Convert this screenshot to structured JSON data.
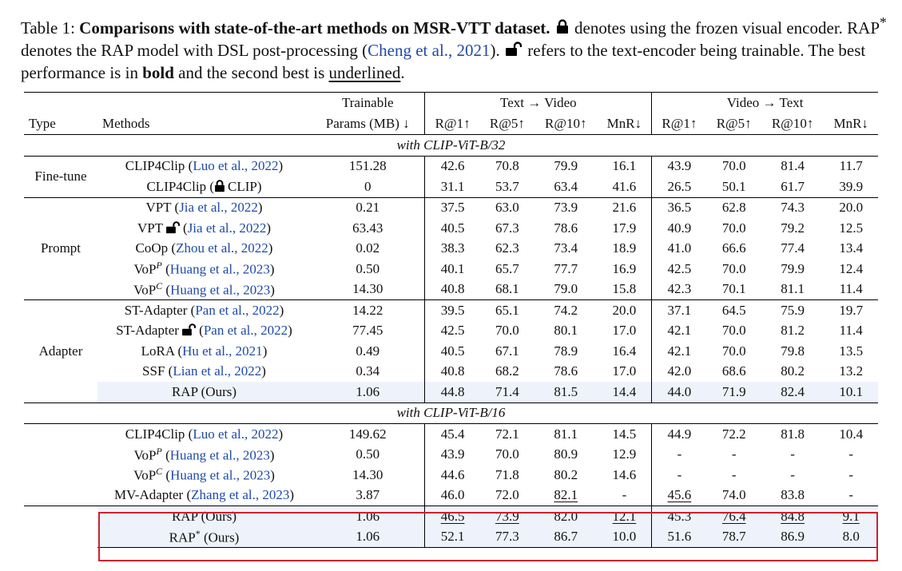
{
  "caption": {
    "label": "Table 1:",
    "title": "Comparisons with state-of-the-art methods on MSR-VTT dataset.",
    "p1": " denotes using the frozen visual encoder. RAP",
    "p1sup": "*",
    "p2": " denotes the RAP model with DSL post-processing (",
    "cite": "Cheng et al., 2021",
    "p3": ").",
    "p4": " refers to the text-encoder being trainable. The best performance is in ",
    "bold_word": "bold",
    "p5": " and the second best is ",
    "underline_word": "underlined",
    "p6": "."
  },
  "header": {
    "type": "Type",
    "methods": "Methods",
    "params_line1": "Trainable",
    "params_line2": "Params (MB) ↓",
    "t2v": "Text → Video",
    "v2t": "Video → Text",
    "metrics": [
      "R@1↑",
      "R@5↑",
      "R@10↑",
      "MnR↓",
      "R@1↑",
      "R@5↑",
      "R@10↑",
      "MnR↓"
    ]
  },
  "sections": [
    {
      "title": "with CLIP-ViT-B/32",
      "groups": [
        {
          "type": "Fine-tune",
          "rows": [
            {
              "name": "CLIP4Clip",
              "pre": "(",
              "cite": "Luo et al., 2022",
              "post": ")",
              "lock": "",
              "params": "151.28",
              "vals": [
                "42.6",
                "70.8",
                "79.9",
                "16.1",
                "43.9",
                "70.0",
                "81.4",
                "11.7"
              ]
            },
            {
              "name": "CLIP4Clip",
              "pre": "(",
              "cite": "",
              "lock": "closed",
              "post": "CLIP)",
              "params": "0",
              "vals": [
                "31.1",
                "53.7",
                "63.4",
                "41.6",
                "26.5",
                "50.1",
                "61.7",
                "39.9"
              ]
            }
          ]
        },
        {
          "type": "Prompt",
          "rows": [
            {
              "name": "VPT",
              "pre": "(",
              "cite": "Jia et al., 2022",
              "post": ")",
              "lock": "",
              "params": "0.21",
              "vals": [
                "37.5",
                "63.0",
                "73.9",
                "21.6",
                "36.5",
                "62.8",
                "74.3",
                "20.0"
              ]
            },
            {
              "name": "VPT",
              "pre": "(",
              "cite": "Jia et al., 2022",
              "post": ")",
              "lock": "open",
              "params": "63.43",
              "vals": [
                "40.5",
                "67.3",
                "78.6",
                "17.9",
                "40.9",
                "70.0",
                "79.2",
                "12.5"
              ]
            },
            {
              "name": "CoOp",
              "pre": "(",
              "cite": "Zhou et al., 2022",
              "post": ")",
              "lock": "",
              "params": "0.02",
              "params_bold": true,
              "vals": [
                "38.3",
                "62.3",
                "73.4",
                "18.9",
                "41.0",
                "66.6",
                "77.4",
                "13.4"
              ]
            },
            {
              "name": "VoP",
              "sup": "P",
              "pre": "(",
              "cite": "Huang et al., 2023",
              "post": ")",
              "lock": "",
              "params": "0.50",
              "vals": [
                "40.1",
                "65.7",
                "77.7",
                "16.9",
                "42.5",
                "70.0",
                "79.9",
                "12.4"
              ]
            },
            {
              "name": "VoP",
              "sup": "C",
              "pre": "(",
              "cite": "Huang et al., 2023",
              "post": ")",
              "lock": "",
              "params": "14.30",
              "vals": [
                "40.8",
                "68.1",
                "79.0",
                "15.8",
                "42.3",
                "70.1",
                "81.1",
                "11.4"
              ]
            }
          ]
        },
        {
          "type": "Adapter",
          "rows": [
            {
              "name": "ST-Adapter",
              "pre": "(",
              "cite": "Pan et al., 2022",
              "post": ")",
              "lock": "",
              "params": "14.22",
              "vals": [
                "39.5",
                "65.1",
                "74.2",
                "20.0",
                "37.1",
                "64.5",
                "75.9",
                "19.7"
              ]
            },
            {
              "name": "ST-Adapter",
              "pre": "(",
              "cite": "Pan et al., 2022",
              "post": ")",
              "lock": "open",
              "params": "77.45",
              "vals": [
                "42.5",
                "70.0",
                "80.1",
                "17.0",
                "42.1",
                "70.0",
                "81.2",
                "11.4"
              ]
            },
            {
              "name": "LoRA",
              "pre": "(",
              "cite": "Hu et al., 2021",
              "post": ")",
              "lock": "",
              "params": "0.49",
              "vals": [
                "40.5",
                "67.1",
                "78.9",
                "16.4",
                "42.1",
                "70.0",
                "79.8",
                "13.5"
              ]
            },
            {
              "name": "SSF",
              "pre": "(",
              "cite": "Lian et al., 2022",
              "post": ")",
              "lock": "",
              "params": "0.34",
              "vals": [
                "40.8",
                "68.2",
                "78.6",
                "17.0",
                "42.0",
                "68.6",
                "80.2",
                "13.2"
              ]
            },
            {
              "name": "RAP (Ours)",
              "pre": "",
              "cite": "",
              "post": "",
              "lock": "",
              "params": "1.06",
              "ours": true,
              "vals": [
                "44.8",
                "71.4",
                "81.5",
                "14.4",
                "44.0",
                "71.9",
                "82.4",
                "10.1"
              ],
              "styles": [
                "b",
                "b",
                "b",
                "b",
                "b",
                "b",
                "b",
                "b"
              ]
            }
          ]
        }
      ]
    },
    {
      "title": "with CLIP-ViT-B/16",
      "groups": [
        {
          "type": "",
          "rows": [
            {
              "name": "CLIP4Clip",
              "pre": "(",
              "cite": "Luo et al., 2022",
              "post": ")",
              "lock": "",
              "params": "149.62",
              "vals": [
                "45.4",
                "72.1",
                "81.1",
                "14.5",
                "44.9",
                "72.2",
                "81.8",
                "10.4"
              ]
            },
            {
              "name": "VoP",
              "sup": "P",
              "pre": "(",
              "cite": "Huang et al., 2023",
              "post": ")",
              "lock": "",
              "params": "0.50",
              "vals": [
                "43.9",
                "70.0",
                "80.9",
                "12.9",
                "-",
                "-",
                "-",
                "-"
              ]
            },
            {
              "name": "VoP",
              "sup": "C",
              "pre": "(",
              "cite": "Huang et al., 2023",
              "post": ")",
              "lock": "",
              "params": "14.30",
              "vals": [
                "44.6",
                "71.8",
                "80.2",
                "14.6",
                "-",
                "-",
                "-",
                "-"
              ]
            },
            {
              "name": "MV-Adapter",
              "pre": "(",
              "cite": "Zhang et al., 2023",
              "post": ")",
              "lock": "",
              "params": "3.87",
              "vals": [
                "46.0",
                "72.0",
                "82.1",
                "-",
                "45.6",
                "74.0",
                "83.8",
                "-"
              ],
              "styles": [
                "",
                "",
                "u",
                "",
                "u",
                "",
                "",
                ""
              ]
            }
          ]
        },
        {
          "type": "",
          "rows": [
            {
              "name": "RAP (Ours)",
              "pre": "",
              "cite": "",
              "post": "",
              "lock": "",
              "params": "1.06",
              "ours": true,
              "vals": [
                "46.5",
                "73.9",
                "82.0",
                "12.1",
                "45.3",
                "76.4",
                "84.8",
                "9.1"
              ],
              "styles": [
                "u",
                "u",
                "",
                "u",
                "",
                "u",
                "u",
                "u"
              ]
            },
            {
              "name": "RAP",
              "sup": "*",
              "plain_sup": true,
              "pre": "",
              "cite": "",
              "post": "(Ours)",
              "lock": "",
              "params": "1.06",
              "ours": true,
              "vals": [
                "52.1",
                "77.3",
                "86.7",
                "10.0",
                "51.6",
                "78.7",
                "86.9",
                "8.0"
              ],
              "styles": [
                "b",
                "b",
                "b",
                "b",
                "b",
                "b",
                "b",
                "b"
              ]
            }
          ]
        }
      ]
    }
  ]
}
